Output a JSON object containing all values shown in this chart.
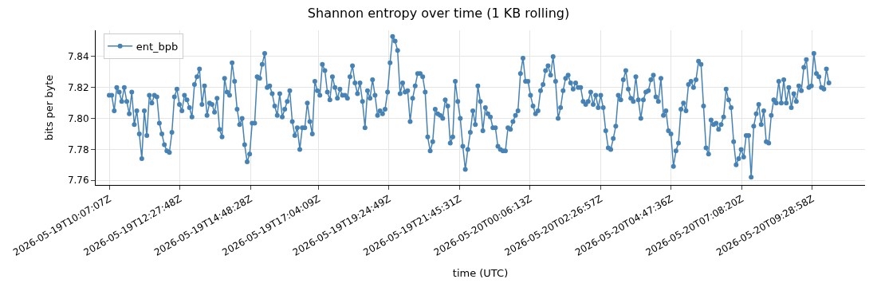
{
  "chart_data": {
    "type": "line",
    "title": "Shannon entropy over time (1 KB rolling)",
    "xlabel": "time (UTC)",
    "ylabel": "bits per byte",
    "grid": true,
    "legend": "top left",
    "marker": "circle",
    "line_style": "solid",
    "xlim": [
      "2026-05-19T09:40",
      "2026-05-20T11:14"
    ],
    "ylim": [
      7.757,
      7.857
    ],
    "xticks": [
      {
        "value": "2026-05-19T10:07:07",
        "label": "2026-05-19T10:07:07Z"
      },
      {
        "value": "2026-05-19T12:27:48",
        "label": "2026-05-19T12:27:48Z"
      },
      {
        "value": "2026-05-19T14:48:28",
        "label": "2026-05-19T14:48:28Z"
      },
      {
        "value": "2026-05-19T17:04:09",
        "label": "2026-05-19T17:04:09Z"
      },
      {
        "value": "2026-05-19T19:24:49",
        "label": "2026-05-19T19:24:49Z"
      },
      {
        "value": "2026-05-19T21:45:31",
        "label": "2026-05-19T21:45:31Z"
      },
      {
        "value": "2026-05-20T00:06:13",
        "label": "2026-05-20T00:06:13Z"
      },
      {
        "value": "2026-05-20T02:26:57",
        "label": "2026-05-20T02:26:57Z"
      },
      {
        "value": "2026-05-20T04:47:36",
        "label": "2026-05-20T04:47:36Z"
      },
      {
        "value": "2026-05-20T07:08:20",
        "label": "2026-05-20T07:08:20Z"
      },
      {
        "value": "2026-05-20T09:28:58",
        "label": "2026-05-20T09:28:58Z"
      }
    ],
    "yticks": [
      7.76,
      7.78,
      {
        "value": 7.8,
        "label": "7.80"
      },
      7.82,
      7.84
    ],
    "x": [
      "2026-05-19T10:07",
      "2026-05-19T10:12",
      "2026-05-19T10:17",
      "2026-05-19T10:22",
      "2026-05-19T10:27",
      "2026-05-19T10:32",
      "2026-05-19T10:37",
      "2026-05-19T10:42",
      "2026-05-19T10:47",
      "2026-05-19T10:52",
      "2026-05-19T10:57",
      "2026-05-19T11:02",
      "2026-05-19T11:07",
      "2026-05-19T11:12",
      "2026-05-19T11:17",
      "2026-05-19T11:22",
      "2026-05-19T11:27",
      "2026-05-19T11:32",
      "2026-05-19T11:37",
      "2026-05-19T11:42",
      "2026-05-19T11:47",
      "2026-05-19T11:52",
      "2026-05-19T11:57",
      "2026-05-19T12:02",
      "2026-05-19T12:07",
      "2026-05-19T12:12",
      "2026-05-19T12:17",
      "2026-05-19T12:22",
      "2026-05-19T12:27",
      "2026-05-19T12:32",
      "2026-05-19T12:37",
      "2026-05-19T12:42",
      "2026-05-19T12:47",
      "2026-05-19T12:52",
      "2026-05-19T12:57",
      "2026-05-19T13:02",
      "2026-05-19T13:07",
      "2026-05-19T13:12",
      "2026-05-19T13:17",
      "2026-05-19T13:22",
      "2026-05-19T13:27",
      "2026-05-19T13:32",
      "2026-05-19T13:37",
      "2026-05-19T13:42",
      "2026-05-19T13:47",
      "2026-05-19T13:52",
      "2026-05-19T13:57",
      "2026-05-19T14:02",
      "2026-05-19T14:07",
      "2026-05-19T14:12",
      "2026-05-19T14:17",
      "2026-05-19T14:22",
      "2026-05-19T14:27",
      "2026-05-19T14:32",
      "2026-05-19T14:37",
      "2026-05-19T14:42",
      "2026-05-19T14:47",
      "2026-05-19T14:52",
      "2026-05-19T14:57",
      "2026-05-19T15:02",
      "2026-05-19T15:07",
      "2026-05-19T15:12",
      "2026-05-19T15:17",
      "2026-05-19T15:22",
      "2026-05-19T15:27",
      "2026-05-19T15:32",
      "2026-05-19T15:37",
      "2026-05-19T15:42",
      "2026-05-19T15:47",
      "2026-05-19T15:52",
      "2026-05-19T15:57",
      "2026-05-19T16:02",
      "2026-05-19T16:07",
      "2026-05-19T16:12",
      "2026-05-19T16:17",
      "2026-05-19T16:22",
      "2026-05-19T16:27",
      "2026-05-19T16:32",
      "2026-05-19T16:37",
      "2026-05-19T16:42",
      "2026-05-19T16:47",
      "2026-05-19T16:52",
      "2026-05-19T16:57",
      "2026-05-19T17:02",
      "2026-05-19T17:07",
      "2026-05-19T17:12",
      "2026-05-19T17:17",
      "2026-05-19T17:22",
      "2026-05-19T17:27",
      "2026-05-19T17:32",
      "2026-05-19T17:37",
      "2026-05-19T17:42",
      "2026-05-19T17:47",
      "2026-05-19T17:52",
      "2026-05-19T17:57",
      "2026-05-19T18:02",
      "2026-05-19T18:07",
      "2026-05-19T18:12",
      "2026-05-19T18:17",
      "2026-05-19T18:22",
      "2026-05-19T18:27",
      "2026-05-19T18:32",
      "2026-05-19T18:37",
      "2026-05-19T18:42",
      "2026-05-19T18:47",
      "2026-05-19T18:52",
      "2026-05-19T18:57",
      "2026-05-19T19:02",
      "2026-05-19T19:07",
      "2026-05-19T19:12",
      "2026-05-19T19:17",
      "2026-05-19T19:22",
      "2026-05-19T19:27",
      "2026-05-19T19:32",
      "2026-05-19T19:37",
      "2026-05-19T19:42",
      "2026-05-19T19:47",
      "2026-05-19T19:52",
      "2026-05-19T19:57",
      "2026-05-19T20:02",
      "2026-05-19T20:07",
      "2026-05-19T20:12",
      "2026-05-19T20:17",
      "2026-05-19T20:22",
      "2026-05-19T20:27",
      "2026-05-19T20:32",
      "2026-05-19T20:37",
      "2026-05-19T20:42",
      "2026-05-19T20:47",
      "2026-05-19T20:52",
      "2026-05-19T20:57",
      "2026-05-19T21:02",
      "2026-05-19T21:07",
      "2026-05-19T21:12",
      "2026-05-19T21:17",
      "2026-05-19T21:22",
      "2026-05-19T21:27",
      "2026-05-19T21:32",
      "2026-05-19T21:37",
      "2026-05-19T21:42",
      "2026-05-19T21:47",
      "2026-05-19T21:52",
      "2026-05-19T21:57",
      "2026-05-19T22:02",
      "2026-05-19T22:07",
      "2026-05-19T22:12",
      "2026-05-19T22:17",
      "2026-05-19T22:22",
      "2026-05-19T22:27",
      "2026-05-19T22:32",
      "2026-05-19T22:37",
      "2026-05-19T22:42",
      "2026-05-19T22:47",
      "2026-05-19T22:52",
      "2026-05-19T22:57",
      "2026-05-19T23:02",
      "2026-05-19T23:07",
      "2026-05-19T23:12",
      "2026-05-19T23:17",
      "2026-05-19T23:22",
      "2026-05-19T23:27",
      "2026-05-19T23:32",
      "2026-05-19T23:37",
      "2026-05-19T23:42",
      "2026-05-19T23:47",
      "2026-05-19T23:52",
      "2026-05-19T23:57",
      "2026-05-20T00:02",
      "2026-05-20T00:07",
      "2026-05-20T00:12",
      "2026-05-20T00:17",
      "2026-05-20T00:22",
      "2026-05-20T00:27",
      "2026-05-20T00:32",
      "2026-05-20T00:37",
      "2026-05-20T00:42",
      "2026-05-20T00:47",
      "2026-05-20T00:52",
      "2026-05-20T00:57",
      "2026-05-20T01:02",
      "2026-05-20T01:07",
      "2026-05-20T01:12",
      "2026-05-20T01:17",
      "2026-05-20T01:22",
      "2026-05-20T01:27",
      "2026-05-20T01:32",
      "2026-05-20T01:37",
      "2026-05-20T01:42",
      "2026-05-20T01:47",
      "2026-05-20T01:52",
      "2026-05-20T01:57",
      "2026-05-20T02:02",
      "2026-05-20T02:07",
      "2026-05-20T02:12",
      "2026-05-20T02:17",
      "2026-05-20T02:22",
      "2026-05-20T02:27",
      "2026-05-20T02:32",
      "2026-05-20T02:37",
      "2026-05-20T02:42",
      "2026-05-20T02:47",
      "2026-05-20T02:52",
      "2026-05-20T02:57",
      "2026-05-20T03:02",
      "2026-05-20T03:07",
      "2026-05-20T03:12",
      "2026-05-20T03:17",
      "2026-05-20T03:22",
      "2026-05-20T03:27",
      "2026-05-20T03:32",
      "2026-05-20T03:37",
      "2026-05-20T03:42",
      "2026-05-20T03:47",
      "2026-05-20T03:52",
      "2026-05-20T03:57",
      "2026-05-20T04:02",
      "2026-05-20T04:07",
      "2026-05-20T04:12",
      "2026-05-20T04:17",
      "2026-05-20T04:22",
      "2026-05-20T04:27",
      "2026-05-20T04:32",
      "2026-05-20T04:37",
      "2026-05-20T04:42",
      "2026-05-20T04:47",
      "2026-05-20T04:52",
      "2026-05-20T04:57",
      "2026-05-20T05:02",
      "2026-05-20T05:07",
      "2026-05-20T05:12",
      "2026-05-20T05:17",
      "2026-05-20T05:22",
      "2026-05-20T05:27",
      "2026-05-20T05:32",
      "2026-05-20T05:37",
      "2026-05-20T05:42",
      "2026-05-20T05:47",
      "2026-05-20T05:52",
      "2026-05-20T05:57",
      "2026-05-20T06:02",
      "2026-05-20T06:07",
      "2026-05-20T06:12",
      "2026-05-20T06:17",
      "2026-05-20T06:22",
      "2026-05-20T06:27",
      "2026-05-20T06:32",
      "2026-05-20T06:37",
      "2026-05-20T06:42",
      "2026-05-20T06:47",
      "2026-05-20T06:52",
      "2026-05-20T06:57",
      "2026-05-20T07:02",
      "2026-05-20T07:07",
      "2026-05-20T07:12",
      "2026-05-20T07:17",
      "2026-05-20T07:22",
      "2026-05-20T07:27",
      "2026-05-20T07:32",
      "2026-05-20T07:37",
      "2026-05-20T07:42",
      "2026-05-20T07:47",
      "2026-05-20T07:52",
      "2026-05-20T07:57",
      "2026-05-20T08:02",
      "2026-05-20T08:07",
      "2026-05-20T08:12",
      "2026-05-20T08:17",
      "2026-05-20T08:22",
      "2026-05-20T08:27",
      "2026-05-20T08:32",
      "2026-05-20T08:37",
      "2026-05-20T08:42",
      "2026-05-20T08:47",
      "2026-05-20T08:52",
      "2026-05-20T08:57",
      "2026-05-20T09:02",
      "2026-05-20T09:07",
      "2026-05-20T09:12",
      "2026-05-20T09:17",
      "2026-05-20T09:22",
      "2026-05-20T09:27",
      "2026-05-20T09:32",
      "2026-05-20T09:37",
      "2026-05-20T09:42",
      "2026-05-20T09:47",
      "2026-05-20T09:52",
      "2026-05-20T09:57",
      "2026-05-20T10:02"
    ],
    "series": [
      {
        "name": "ent_bpb",
        "color": "#4682b4",
        "values": [
          7.815,
          7.815,
          7.805,
          7.82,
          7.817,
          7.811,
          7.82,
          7.811,
          7.803,
          7.817,
          7.796,
          7.805,
          7.79,
          7.774,
          7.805,
          7.789,
          7.815,
          7.81,
          7.815,
          7.814,
          7.797,
          7.79,
          7.783,
          7.779,
          7.778,
          7.791,
          7.814,
          7.819,
          7.809,
          7.805,
          7.815,
          7.812,
          7.807,
          7.801,
          7.822,
          7.827,
          7.832,
          7.809,
          7.821,
          7.802,
          7.81,
          7.809,
          7.804,
          7.813,
          7.793,
          7.788,
          7.826,
          7.817,
          7.815,
          7.836,
          7.824,
          7.806,
          7.796,
          7.8,
          7.783,
          7.772,
          7.777,
          7.797,
          7.797,
          7.827,
          7.826,
          7.835,
          7.842,
          7.82,
          7.821,
          7.816,
          7.808,
          7.802,
          7.816,
          7.801,
          7.806,
          7.811,
          7.818,
          7.798,
          7.789,
          7.794,
          7.78,
          7.794,
          7.794,
          7.81,
          7.798,
          7.79,
          7.824,
          7.818,
          7.815,
          7.835,
          7.831,
          7.817,
          7.812,
          7.827,
          7.82,
          7.813,
          7.819,
          7.815,
          7.815,
          7.813,
          7.827,
          7.834,
          7.823,
          7.816,
          7.823,
          7.811,
          7.794,
          7.818,
          7.813,
          7.825,
          7.815,
          7.802,
          7.805,
          7.803,
          7.806,
          7.817,
          7.836,
          7.853,
          7.85,
          7.844,
          7.816,
          7.823,
          7.817,
          7.818,
          7.798,
          7.813,
          7.821,
          7.829,
          7.829,
          7.827,
          7.817,
          7.788,
          7.779,
          7.785,
          7.806,
          7.803,
          7.802,
          7.8,
          7.812,
          7.808,
          7.784,
          7.788,
          7.824,
          7.811,
          7.8,
          7.782,
          7.767,
          7.78,
          7.791,
          7.805,
          7.796,
          7.821,
          7.811,
          7.792,
          7.807,
          7.803,
          7.801,
          7.794,
          7.794,
          7.782,
          7.78,
          7.779,
          7.779,
          7.794,
          7.793,
          7.798,
          7.802,
          7.805,
          7.829,
          7.839,
          7.824,
          7.824,
          7.815,
          7.808,
          7.803,
          7.805,
          7.818,
          7.822,
          7.831,
          7.834,
          7.828,
          7.84,
          7.824,
          7.8,
          7.807,
          7.818,
          7.826,
          7.828,
          7.823,
          7.819,
          7.823,
          7.82,
          7.82,
          7.811,
          7.809,
          7.811,
          7.817,
          7.809,
          7.815,
          7.807,
          7.815,
          7.807,
          7.792,
          7.781,
          7.78,
          7.787,
          7.795,
          7.815,
          7.812,
          7.825,
          7.831,
          7.819,
          7.813,
          7.811,
          7.827,
          7.812,
          7.8,
          7.812,
          7.817,
          7.818,
          7.825,
          7.828,
          7.814,
          7.811,
          7.826,
          7.802,
          7.805,
          7.792,
          7.79,
          7.769,
          7.779,
          7.784,
          7.806,
          7.81,
          7.805,
          7.822,
          7.824,
          7.82,
          7.825,
          7.837,
          7.835,
          7.808,
          7.781,
          7.777,
          7.799,
          7.796,
          7.797,
          7.793,
          7.796,
          7.801,
          7.819,
          7.812,
          7.807,
          7.785,
          7.77,
          7.774,
          7.78,
          7.775,
          7.789,
          7.789,
          7.762,
          7.795,
          7.803,
          7.809,
          7.796,
          7.805,
          7.785,
          7.784,
          7.802,
          7.812,
          7.81,
          7.824,
          7.81,
          7.825,
          7.81,
          7.82,
          7.807,
          7.816,
          7.811,
          7.821,
          7.818,
          7.833,
          7.838,
          7.82,
          7.821,
          7.842,
          7.829,
          7.827,
          7.82,
          7.819,
          7.832,
          7.823
        ]
      }
    ]
  }
}
